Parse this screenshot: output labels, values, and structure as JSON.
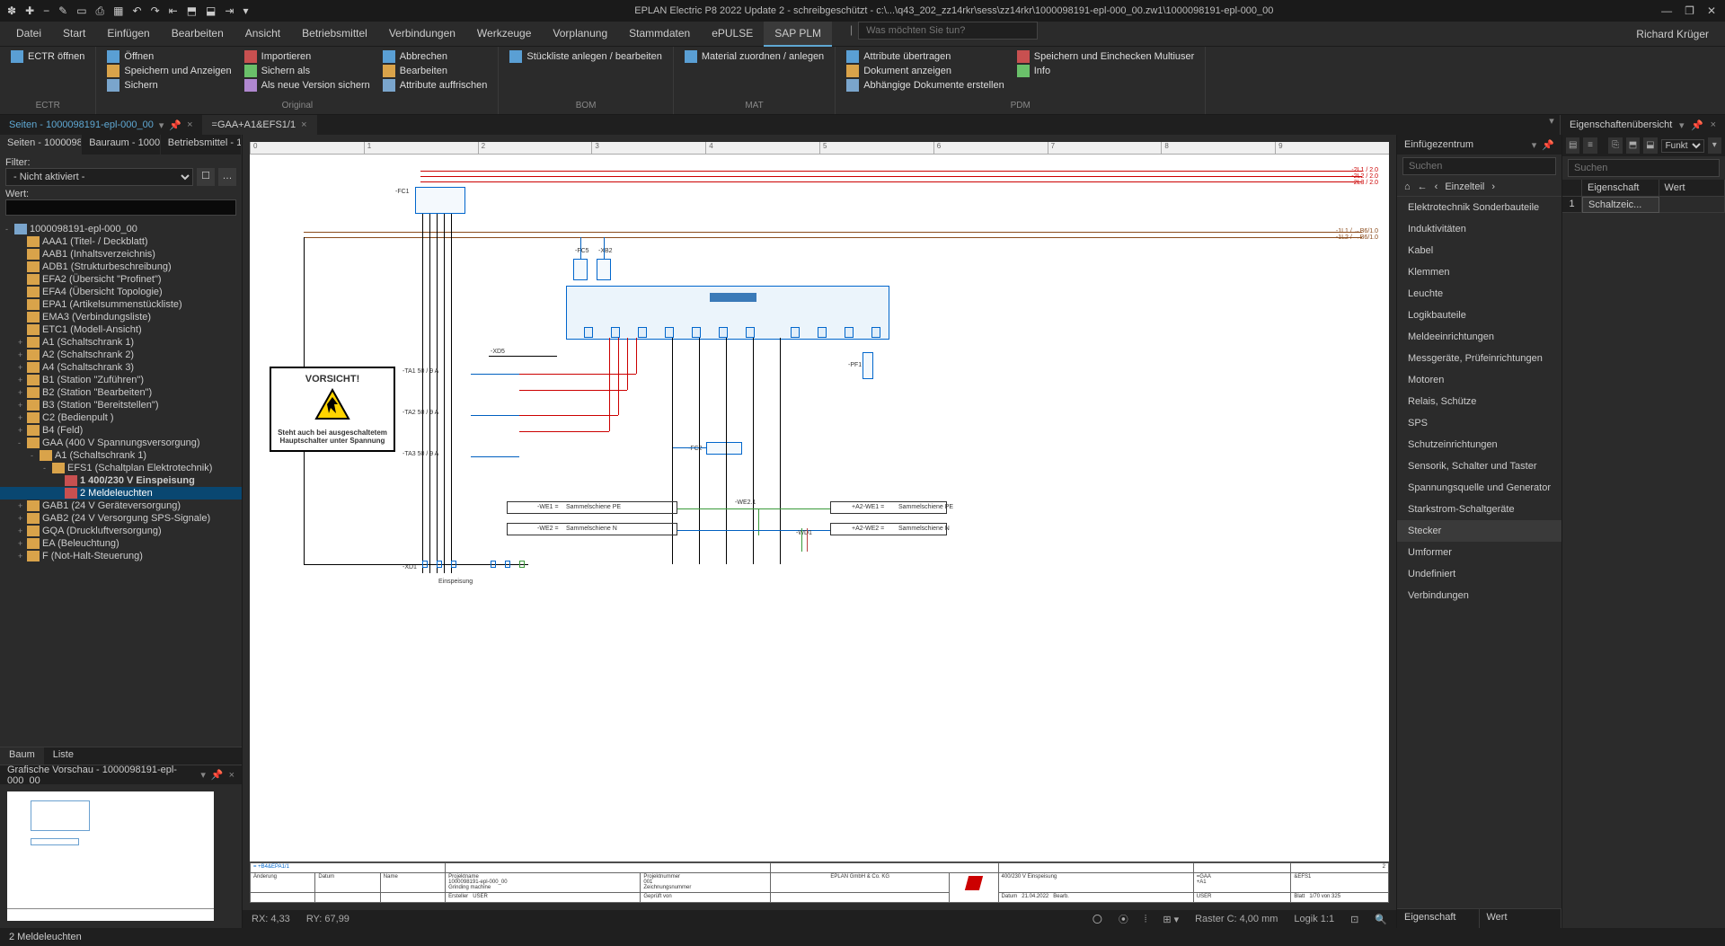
{
  "titlebar": {
    "title": "EPLAN Electric P8 2022 Update 2 - schreibgeschützt - c:\\...\\q43_202_zz14rkr\\sess\\zz14rkr\\1000098191-epl-000_00.zw1\\1000098191-epl-000_00"
  },
  "menubar": {
    "items": [
      "Datei",
      "Start",
      "Einfügen",
      "Bearbeiten",
      "Ansicht",
      "Betriebsmittel",
      "Verbindungen",
      "Werkzeuge",
      "Vorplanung",
      "Stammdaten",
      "ePULSE",
      "SAP PLM"
    ],
    "active": "SAP PLM",
    "search_placeholder": "Was möchten Sie tun?",
    "user": "Richard Krüger"
  },
  "ribbon": {
    "groups": [
      {
        "label": "ECTR",
        "items": [
          "ECTR öffnen"
        ]
      },
      {
        "label": "Original",
        "items": [
          "Öffnen",
          "Speichern und Anzeigen",
          "Sichern",
          "Importieren",
          "Sichern als",
          "Als neue Version sichern",
          "Abbrechen",
          "Bearbeiten",
          "Attribute auffrischen"
        ]
      },
      {
        "label": "BOM",
        "items": [
          "Stückliste anlegen / bearbeiten"
        ]
      },
      {
        "label": "MAT",
        "items": [
          "Material zuordnen / anlegen"
        ]
      },
      {
        "label": "PDM",
        "items": [
          "Attribute übertragen",
          "Dokument anzeigen",
          "Abhängige Dokumente erstellen",
          "Speichern und Einchecken Multiuser",
          "Info"
        ]
      }
    ]
  },
  "doctabs": {
    "side": "Seiten - 1000098191-epl-000_00",
    "main": "=GAA+A1&EFS1/1"
  },
  "left": {
    "tabs": [
      "Seiten - 10000981...",
      "Bauraum - 10000...",
      "Betriebsmittel - 10..."
    ],
    "filter_label": "Filter:",
    "filter_value": "- Nicht aktiviert -",
    "wert_label": "Wert:",
    "tree": [
      {
        "d": 0,
        "e": "-",
        "ic": "doc",
        "t": "1000098191-epl-000_00"
      },
      {
        "d": 1,
        "e": "",
        "ic": "folder",
        "t": "AAA1 (Titel- / Deckblatt)"
      },
      {
        "d": 1,
        "e": "",
        "ic": "folder",
        "t": "AAB1 (Inhaltsverzeichnis)"
      },
      {
        "d": 1,
        "e": "",
        "ic": "folder",
        "t": "ADB1 (Strukturbeschreibung)"
      },
      {
        "d": 1,
        "e": "",
        "ic": "folder",
        "t": "EFA2 (Übersicht \"Profinet\")"
      },
      {
        "d": 1,
        "e": "",
        "ic": "folder",
        "t": "EFA4 (Übersicht Topologie)"
      },
      {
        "d": 1,
        "e": "",
        "ic": "folder",
        "t": "EPA1 (Artikelsummenstückliste)"
      },
      {
        "d": 1,
        "e": "",
        "ic": "folder",
        "t": "EMA3 (Verbindungsliste)"
      },
      {
        "d": 1,
        "e": "",
        "ic": "folder",
        "t": "ETC1 (Modell-Ansicht)"
      },
      {
        "d": 1,
        "e": "+",
        "ic": "folder",
        "t": "A1 (Schaltschrank 1)"
      },
      {
        "d": 1,
        "e": "+",
        "ic": "folder",
        "t": "A2 (Schaltschrank 2)"
      },
      {
        "d": 1,
        "e": "+",
        "ic": "folder",
        "t": "A4 (Schaltschrank 3)"
      },
      {
        "d": 1,
        "e": "+",
        "ic": "folder",
        "t": "B1 (Station \"Zuführen\")"
      },
      {
        "d": 1,
        "e": "+",
        "ic": "folder",
        "t": "B2 (Station \"Bearbeiten\")"
      },
      {
        "d": 1,
        "e": "+",
        "ic": "folder",
        "t": "B3 (Station \"Bereitstellen\")"
      },
      {
        "d": 1,
        "e": "+",
        "ic": "folder",
        "t": "C2 (Bedienpult )"
      },
      {
        "d": 1,
        "e": "+",
        "ic": "folder",
        "t": "B4 (Feld)"
      },
      {
        "d": 1,
        "e": "-",
        "ic": "folder",
        "t": "GAA (400 V Spannungsversorgung)"
      },
      {
        "d": 2,
        "e": "-",
        "ic": "folder",
        "t": "A1 (Schaltschrank 1)"
      },
      {
        "d": 3,
        "e": "-",
        "ic": "folder",
        "t": "EFS1 (Schaltplan Elektrotechnik)"
      },
      {
        "d": 4,
        "e": "",
        "ic": "page",
        "t": "1 400/230 V Einspeisung",
        "bold": true
      },
      {
        "d": 4,
        "e": "",
        "ic": "page",
        "t": "2 Meldeleuchten",
        "sel": true
      },
      {
        "d": 1,
        "e": "+",
        "ic": "folder",
        "t": "GAB1 (24 V Geräteversorgung)"
      },
      {
        "d": 1,
        "e": "+",
        "ic": "folder",
        "t": "GAB2 (24 V Versorgung SPS-Signale)"
      },
      {
        "d": 1,
        "e": "+",
        "ic": "folder",
        "t": "GQA (Druckluftversorgung)"
      },
      {
        "d": 1,
        "e": "+",
        "ic": "folder",
        "t": "EA (Beleuchtung)"
      },
      {
        "d": 1,
        "e": "+",
        "ic": "folder",
        "t": "F (Not-Halt-Steuerung)"
      }
    ],
    "btabs": [
      "Baum",
      "Liste"
    ]
  },
  "preview": {
    "title": "Grafische Vorschau - 1000098191-epl-000_00"
  },
  "canvas": {
    "ruler": [
      "0",
      "1",
      "2",
      "3",
      "4",
      "5",
      "6",
      "7",
      "8",
      "9"
    ],
    "warn_title": "VORSICHT!",
    "warn_sub": "Steht auch bei ausgeschaltetem Hauptschalter unter Spannung",
    "phases_right": [
      "-2L1 / 2.0",
      "-2L2 / 2.0",
      "-2L3 / 2.0"
    ],
    "phases_right2": [
      "-1L1 / →B6/1.0",
      "-1L2 / →B6/1.0"
    ],
    "labels": {
      "fc1": "-FC1",
      "fc2": "-FC2",
      "fc5": "-FC5",
      "xb2": "-XB2",
      "ta1": "-TA1  50 / 9 A",
      "ta2": "-TA2  50 / 9 A",
      "ta3": "-TA3  50 / 9 A",
      "xd5": "-XD5",
      "pf1": "-PF1",
      "xd1": "-XD1",
      "wd1": "-WD1",
      "we1": "-WE1 =",
      "we2": "-WE2 =",
      "we21": "-WE2.1",
      "a2we1": "+A2-WE1 =",
      "a2we2": "+A2-WE2 =",
      "sspe": "Sammelschiene PE",
      "ssn": "Sammelschiene N",
      "ein": "Einspeisung"
    },
    "titleblock": {
      "ref": "= +B4&EPA1/1",
      "projname_l": "Projektname",
      "projname": "1000098191-epl-000_00",
      "desc_l": "Beschreibung",
      "desc": "Grinding machine",
      "comp": "EPLAN GmbH & Co. KG",
      "page": "400/230 V Einspeisung",
      "gaa": "=GAA",
      "efs": "&EFS1",
      "a1": "+A1",
      "ers_l": "Ersteller",
      "ers": "USER",
      "dat_l": "Datum",
      "dat": "21.04.2022",
      "bearb_l": "Bearb.",
      "gep_l": "Geprüft von",
      "blatt_l": "Blatt",
      "blatt": "1/70  von  325",
      "pagenum": "2",
      "zeich_l": "Zeichnungsnummer",
      "aend_l": "Änderung",
      "name_l": "Name",
      "proj_l": "Projektnummer",
      "proj": "001"
    },
    "status": {
      "rx": "RX: 4,33",
      "ry": "RY: 67,99",
      "raster": "Raster C: 4,00 mm",
      "logik": "Logik 1:1"
    }
  },
  "right1": {
    "title": "Einfügezentrum",
    "search_placeholder": "Suchen",
    "breadcrumb": "Einzelteil",
    "cats": [
      "Elektrotechnik Sonderbauteile",
      "Induktivitäten",
      "Kabel",
      "Klemmen",
      "Leuchte",
      "Logikbauteile",
      "Meldeeinrichtungen",
      "Messgeräte, Prüfeinrichtungen",
      "Motoren",
      "Relais, Schütze",
      "SPS",
      "Schutzeinrichtungen",
      "Sensorik, Schalter und Taster",
      "Spannungsquelle und Generator",
      "Starkstrom-Schaltgeräte",
      "Stecker",
      "Umformer",
      "Undefiniert",
      "Verbindungen"
    ],
    "selected": "Stecker",
    "footer": [
      "Eigenschaft",
      "Wert"
    ]
  },
  "right2": {
    "title": "Eigenschaftenübersicht",
    "toolbar_dd": "Funkt",
    "search_placeholder": "Suchen",
    "cols": [
      "",
      "Eigenschaft",
      "Wert"
    ],
    "row1": [
      "1",
      "Schaltzeic...",
      ""
    ]
  },
  "bottom": {
    "text": "2 Meldeleuchten"
  }
}
